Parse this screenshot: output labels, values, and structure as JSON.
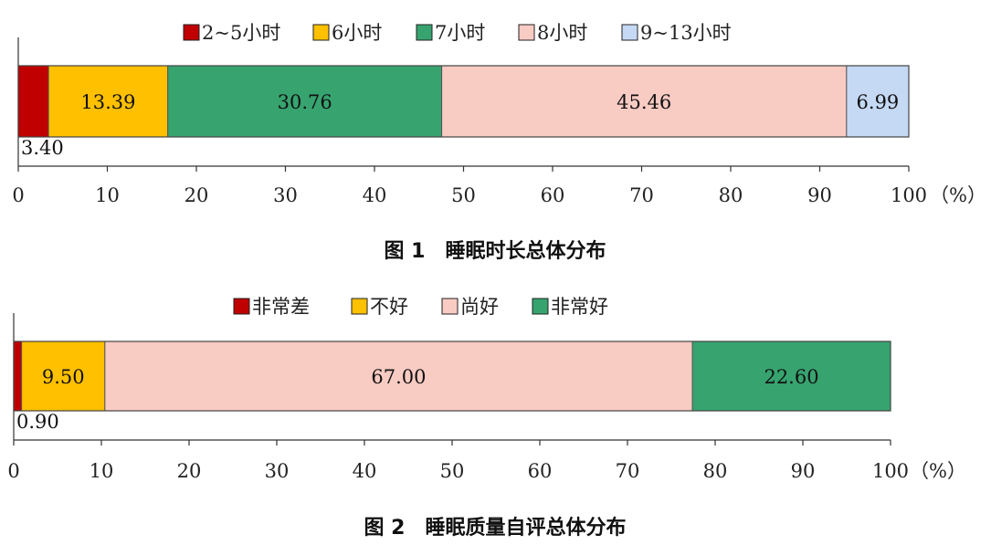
{
  "chart_data": [
    {
      "type": "bar",
      "orientation": "horizontal-stacked",
      "caption": "图 1　睡眠时长总体分布",
      "legend_position": "top",
      "unit_label": "（%）",
      "xlim": [
        0,
        100
      ],
      "x_ticks": [
        0,
        10,
        20,
        30,
        40,
        50,
        60,
        70,
        80,
        90,
        100
      ],
      "series": [
        {
          "name": "2~5小时",
          "value": 3.4,
          "label": "3.40",
          "color": "#c00000",
          "label_position": "below"
        },
        {
          "name": "6小时",
          "value": 13.39,
          "label": "13.39",
          "color": "#ffc000",
          "label_position": "inside"
        },
        {
          "name": "7小时",
          "value": 30.76,
          "label": "30.76",
          "color": "#37a470",
          "label_position": "inside"
        },
        {
          "name": "8小时",
          "value": 45.46,
          "label": "45.46",
          "color": "#f8cbc3",
          "label_position": "inside"
        },
        {
          "name": "9~13小时",
          "value": 6.99,
          "label": "6.99",
          "color": "#c5d9f5",
          "label_position": "inside"
        }
      ]
    },
    {
      "type": "bar",
      "orientation": "horizontal-stacked",
      "caption": "图 2　睡眠质量自评总体分布",
      "legend_position": "top",
      "unit_label": "（%）",
      "xlim": [
        0,
        100
      ],
      "x_ticks": [
        0,
        10,
        20,
        30,
        40,
        50,
        60,
        70,
        80,
        90,
        100
      ],
      "series": [
        {
          "name": "非常差",
          "value": 0.9,
          "label": "0.90",
          "color": "#c00000",
          "label_position": "below"
        },
        {
          "name": "不好",
          "value": 9.5,
          "label": "9.50",
          "color": "#ffc000",
          "label_position": "inside"
        },
        {
          "name": "尚好",
          "value": 67.0,
          "label": "67.00",
          "color": "#f8cbc3",
          "label_position": "inside"
        },
        {
          "name": "非常好",
          "value": 22.6,
          "label": "22.60",
          "color": "#37a470",
          "label_position": "inside"
        }
      ]
    }
  ]
}
